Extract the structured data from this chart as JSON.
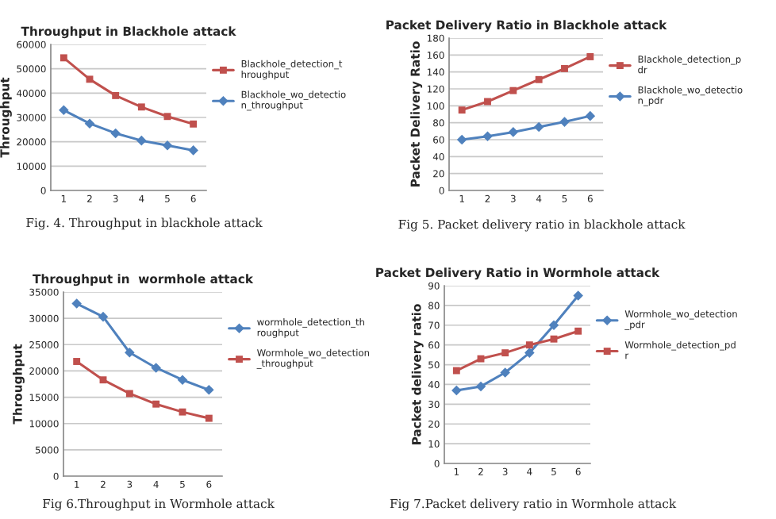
{
  "chart_data": [
    {
      "type": "line",
      "title": "Throughput in Blackhole attack",
      "ylabel": "Throughput",
      "categories": [
        "1",
        "2",
        "3",
        "4",
        "5",
        "6"
      ],
      "ylim": [
        0,
        60000
      ],
      "yticks": [
        0,
        10000,
        20000,
        30000,
        40000,
        50000,
        60000
      ],
      "grid": "y",
      "legend": "right",
      "annotations": [
        "Fig. 4. Throughput in blackhole attack"
      ],
      "series": [
        {
          "name": "Blackhole_detection_throughput",
          "color": "#c0504d",
          "marker": "square",
          "values": [
            54500,
            45700,
            39000,
            34300,
            30400,
            27300
          ]
        },
        {
          "name": "Blackhole_wo_detection_throughput",
          "color": "#4f81bd",
          "marker": "diamond",
          "values": [
            33000,
            27500,
            23500,
            20500,
            18500,
            16500
          ]
        }
      ]
    },
    {
      "type": "line",
      "title": "Packet Delivery Ratio in Blackhole attack",
      "ylabel": "Packet Delivery Ratio",
      "categories": [
        "1",
        "2",
        "3",
        "4",
        "5",
        "6"
      ],
      "ylim": [
        0,
        180
      ],
      "yticks": [
        0,
        20,
        40,
        60,
        80,
        100,
        120,
        140,
        160,
        180
      ],
      "grid": "y",
      "legend": "right",
      "annotations": [
        "Fig 5. Packet delivery ratio in blackhole attack"
      ],
      "series": [
        {
          "name": "Blackhole_detection_pdr",
          "color": "#c0504d",
          "marker": "square",
          "values": [
            95,
            105,
            118,
            131,
            144,
            158
          ]
        },
        {
          "name": "Blackhole_wo_detection_pdr",
          "color": "#4f81bd",
          "marker": "diamond",
          "values": [
            60,
            64,
            69,
            75,
            81,
            88
          ]
        }
      ]
    },
    {
      "type": "line",
      "title": "Throughput in  wormhole attack",
      "ylabel": "Throughput",
      "categories": [
        "1",
        "2",
        "3",
        "4",
        "5",
        "6"
      ],
      "ylim": [
        0,
        35000
      ],
      "yticks": [
        0,
        5000,
        10000,
        15000,
        20000,
        25000,
        30000,
        35000
      ],
      "grid": "y",
      "legend": "right",
      "annotations": [
        "Fig 6.Throughput in Wormhole attack"
      ],
      "series": [
        {
          "name": "wormhole_detection_throughput",
          "color": "#4f81bd",
          "marker": "diamond",
          "values": [
            32800,
            30300,
            23500,
            20600,
            18300,
            16400
          ]
        },
        {
          "name": "Wormhole_wo_detection_throughput",
          "color": "#c0504d",
          "marker": "square",
          "values": [
            21800,
            18300,
            15700,
            13700,
            12200,
            11000
          ]
        }
      ]
    },
    {
      "type": "line",
      "title": "Packet Delivery Ratio in Wormhole attack",
      "ylabel": "Packet delivery ratio",
      "categories": [
        "1",
        "2",
        "3",
        "4",
        "5",
        "6"
      ],
      "ylim": [
        0,
        90
      ],
      "yticks": [
        0,
        10,
        20,
        30,
        40,
        50,
        60,
        70,
        80,
        90
      ],
      "grid": "y",
      "legend": "right",
      "annotations": [
        "Fig 7.Packet delivery ratio in Wormhole attack"
      ],
      "series": [
        {
          "name": "Wormhole_wo_detection_pdr",
          "color": "#4f81bd",
          "marker": "diamond",
          "values": [
            37,
            39,
            46,
            56,
            70,
            85
          ]
        },
        {
          "name": "Wormhole_detection_pdr",
          "color": "#c0504d",
          "marker": "square",
          "values": [
            47,
            53,
            56,
            60,
            63,
            67
          ]
        }
      ]
    }
  ]
}
